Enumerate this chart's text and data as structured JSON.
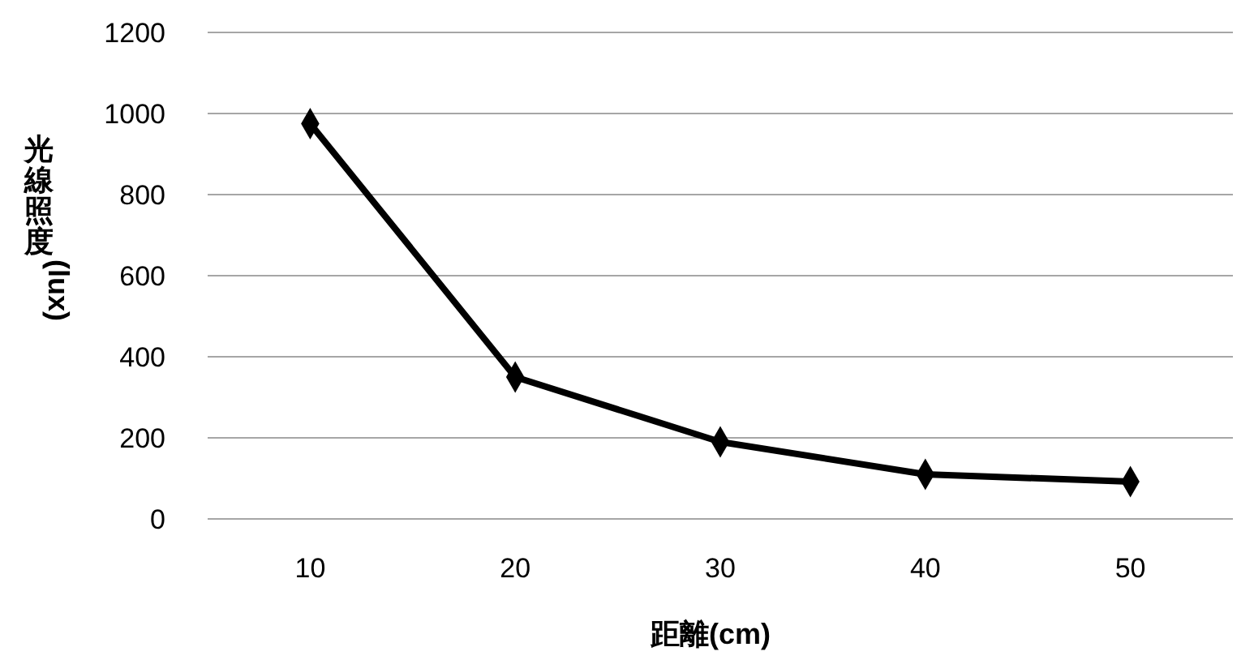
{
  "chart_data": {
    "type": "line",
    "xlabel": "距離(cm)",
    "ylabel": "光線照度(lux)",
    "categories": [
      "10",
      "20",
      "30",
      "40",
      "50"
    ],
    "series": [
      {
        "color": "#000000",
        "values": [
          975,
          350,
          190,
          110,
          92
        ]
      }
    ],
    "ylim": [
      0,
      1200
    ],
    "yticks": [
      0,
      200,
      400,
      600,
      800,
      1000,
      1200
    ],
    "grid": "y",
    "marker": "diamond",
    "line_style": "solid"
  }
}
